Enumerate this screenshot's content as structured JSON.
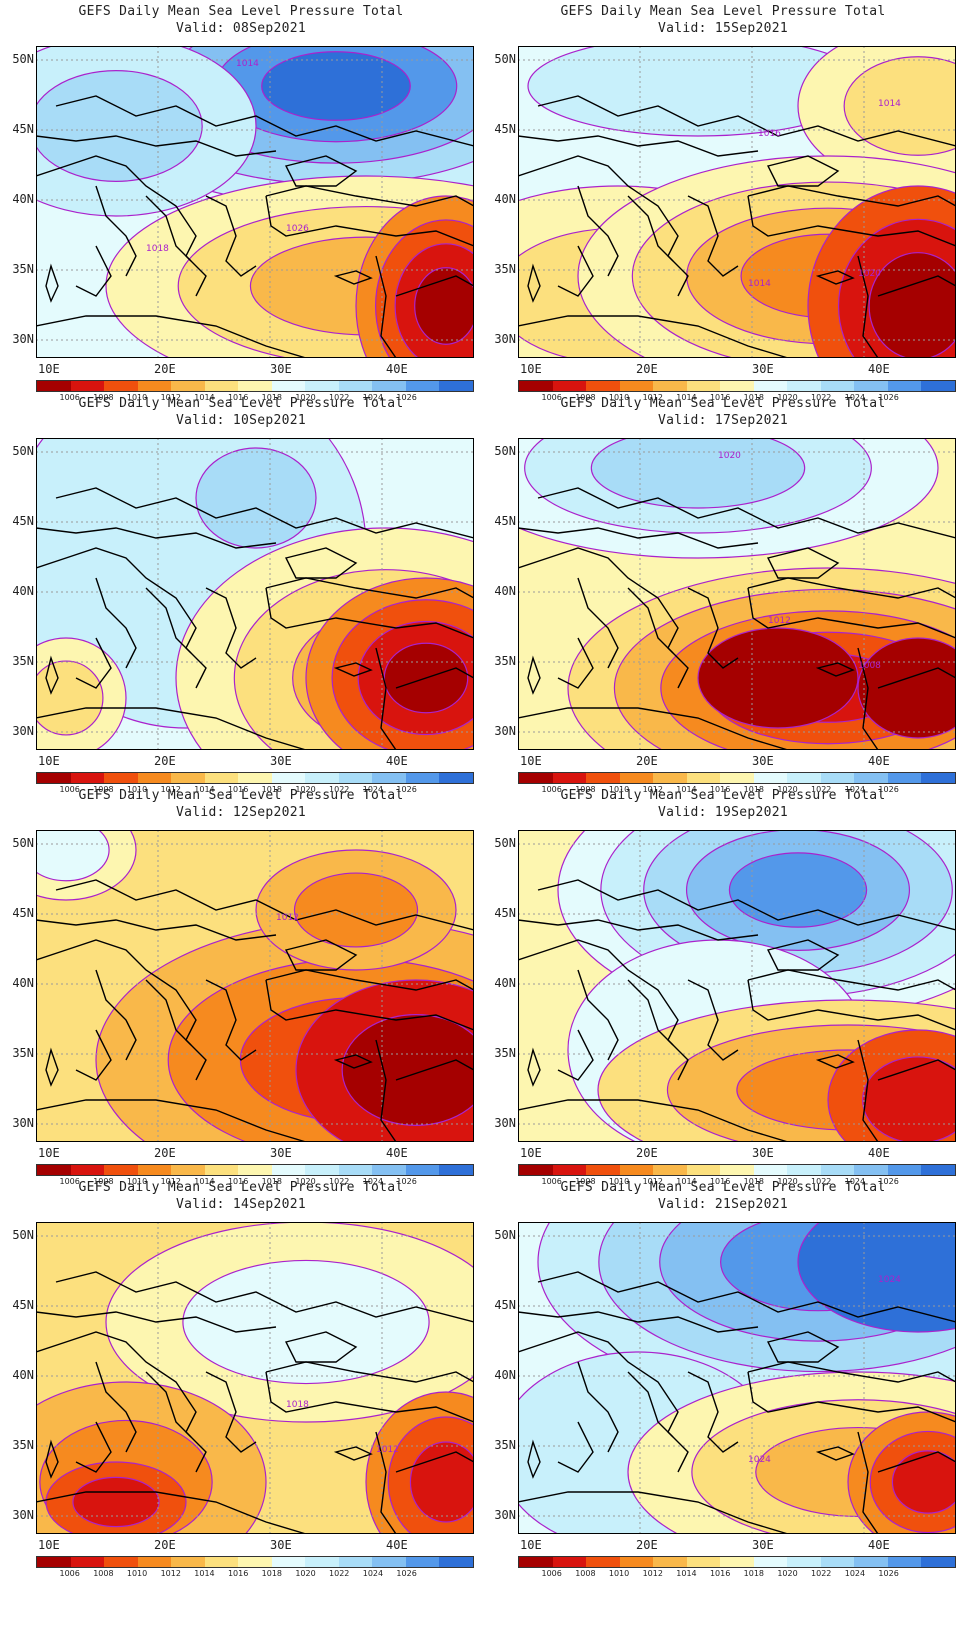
{
  "figure": {
    "title": "GEFS Daily Mean Sea Level Pressure Total",
    "panels": [
      {
        "valid": "Valid: 08Sep2021",
        "labels": [
          "1018",
          "1014",
          "1026"
        ]
      },
      {
        "valid": "Valid: 15Sep2021",
        "labels": [
          "1020",
          "1016",
          "1014",
          "1014"
        ]
      },
      {
        "valid": "Valid: 10Sep2021",
        "labels": []
      },
      {
        "valid": "Valid: 17Sep2021",
        "labels": [
          "1020",
          "1012",
          "1008"
        ]
      },
      {
        "valid": "Valid: 12Sep2021",
        "labels": [
          "1012"
        ]
      },
      {
        "valid": "Valid: 19Sep2021",
        "labels": []
      },
      {
        "valid": "Valid: 14Sep2021",
        "labels": [
          "1018",
          "1012"
        ]
      },
      {
        "valid": "Valid: 21Sep2021",
        "labels": [
          "1024",
          "1024"
        ]
      }
    ]
  },
  "axes": {
    "lat_labels": [
      "50N",
      "45N",
      "40N",
      "35N",
      "30N"
    ],
    "lon_labels": [
      "10E",
      "20E",
      "30E",
      "40E"
    ]
  },
  "colorbar": {
    "labels": [
      "1006",
      "1008",
      "1010",
      "1012",
      "1014",
      "1016",
      "1018",
      "1020",
      "1022",
      "1024",
      "1026"
    ],
    "colors": [
      "#a50000",
      "#d8140e",
      "#f0500d",
      "#f68a1f",
      "#f9b84a",
      "#fce07e",
      "#fdf6b0",
      "#e4fbfd",
      "#c8f0fb",
      "#a8dcf7",
      "#84c0f2",
      "#5398ea",
      "#2e70d8"
    ]
  },
  "colors": {
    "contour": "#aa22cc",
    "coast": "#000000",
    "grid": "#9a9a9a"
  }
}
